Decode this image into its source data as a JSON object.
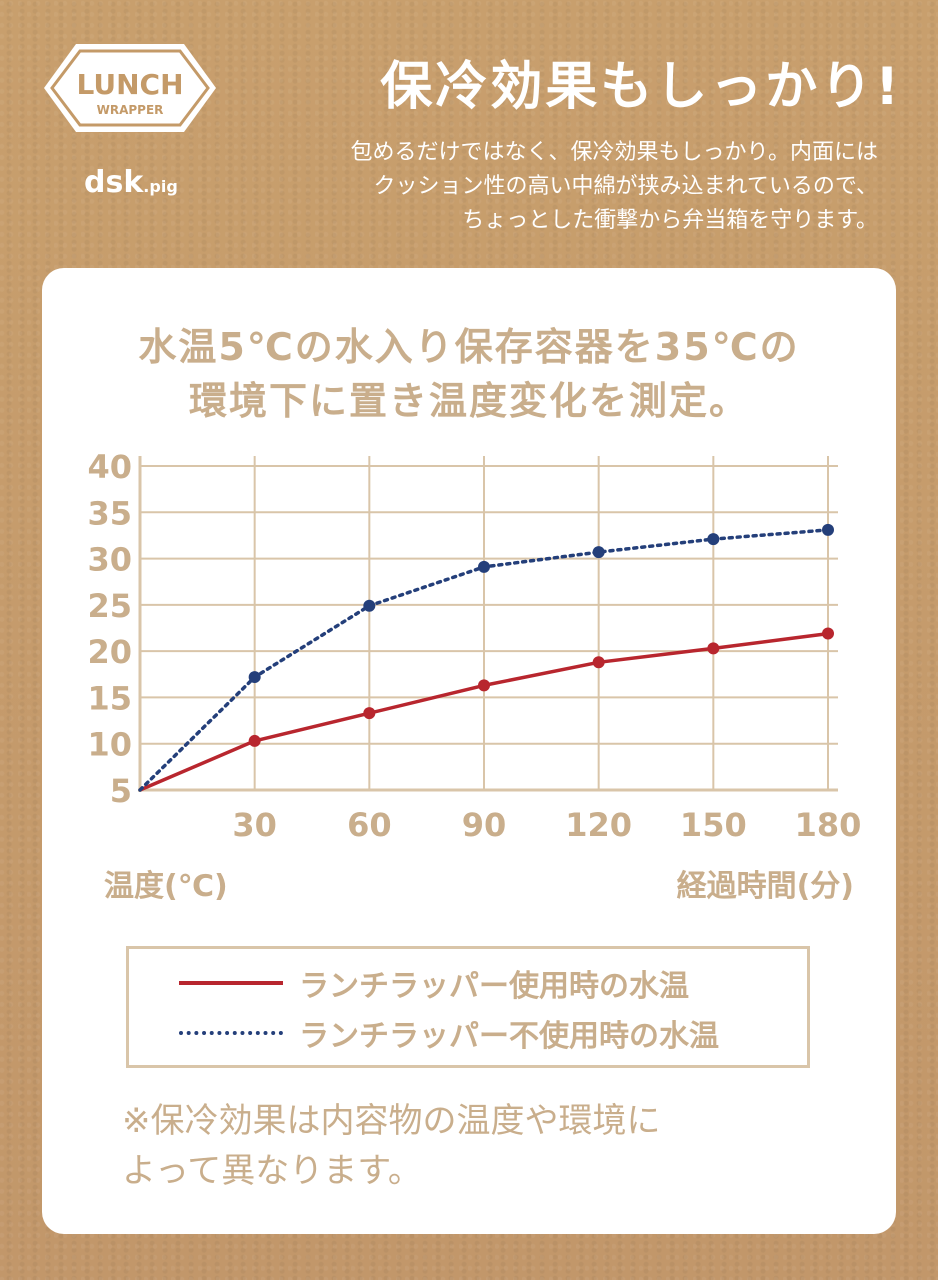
{
  "brand": {
    "logo_top": "LUNCH",
    "logo_bottom": "WRAPPER",
    "maker": "dsk",
    "maker_suffix": ".pig"
  },
  "header": {
    "title": "保冷効果もしっかり!",
    "intro": [
      "包めるだけではなく、保冷効果もしっかり。内面には",
      "クッション性の高い中綿が挟み込まれているので、",
      "ちょっとした衝撃から弁当箱を守ります。"
    ]
  },
  "colors": {
    "accent_red": "#b8262e",
    "accent_navy": "#243f7a",
    "label_tan": "#c9ae8c",
    "grid": "#d9c5a9"
  },
  "chart_data": {
    "type": "line",
    "title": [
      "水温5℃の水入り保存容器を35℃の",
      "環境下に置き温度変化を測定。"
    ],
    "x": [
      0,
      30,
      60,
      90,
      120,
      150,
      180
    ],
    "xticks": [
      30,
      60,
      90,
      120,
      150,
      180
    ],
    "yticks": [
      5,
      10,
      15,
      20,
      25,
      30,
      35,
      40
    ],
    "xlim": [
      0,
      180
    ],
    "ylim": [
      5,
      40
    ],
    "xlabel": "経過時間(分)",
    "ylabel": "温度(℃)",
    "grid": true,
    "series": [
      {
        "name": "ランチラッパー使用時の水温",
        "style": "solid",
        "color": "#b8262e",
        "values": [
          5,
          10.3,
          13.3,
          16.3,
          18.8,
          20.3,
          21.9
        ]
      },
      {
        "name": "ランチラッパー不使用時の水温",
        "style": "dotted",
        "color": "#243f7a",
        "values": [
          5,
          17.2,
          24.9,
          29.1,
          30.7,
          32.1,
          33.1
        ]
      }
    ]
  },
  "note": [
    "※保冷効果は内容物の温度や環境に",
    "よって異なります。"
  ]
}
